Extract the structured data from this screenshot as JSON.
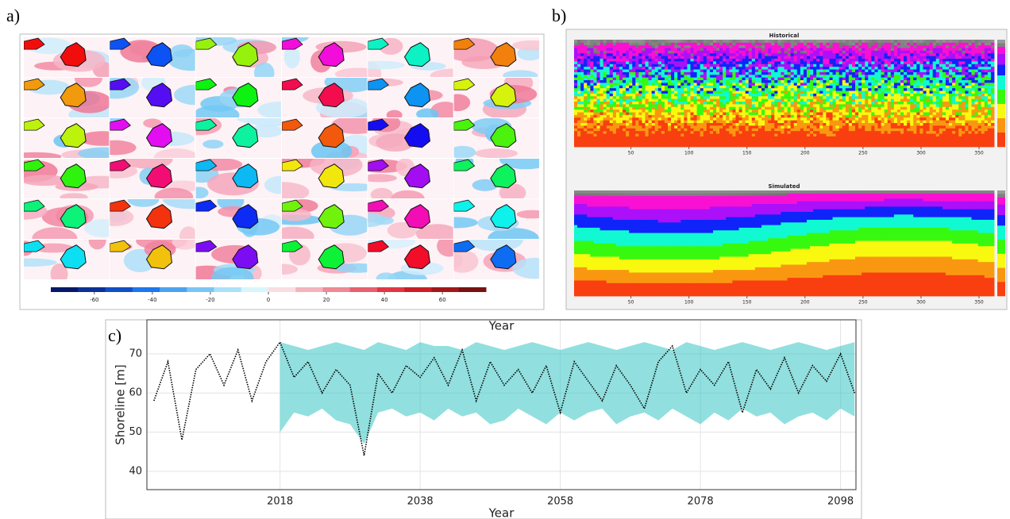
{
  "chart_data": [
    {
      "type": "mapgrid",
      "panel_label": "a)",
      "clim": [
        -75,
        75
      ],
      "cticks": [
        -60,
        -40,
        -20,
        0,
        20,
        40,
        60
      ]
    },
    {
      "type": "heatmap",
      "panel_label": "b)",
      "title": "Historical",
      "style": "rough",
      "xlim": [
        1,
        363
      ],
      "xticks": [
        50,
        100,
        150,
        200,
        250,
        300,
        350
      ]
    },
    {
      "type": "heatmap",
      "title": "Simulated",
      "style": "smooth",
      "xlim": [
        1,
        363
      ],
      "xticks": [
        50,
        100,
        150,
        200,
        250,
        300,
        350
      ]
    },
    {
      "type": "line",
      "panel_label": "c)",
      "title": "Year",
      "xlabel": "Year",
      "ylabel": "Shoreline [m]",
      "xlim": [
        1999,
        2100.2
      ],
      "ylim": [
        35.3,
        78.7
      ],
      "xticks": [
        2018,
        2038,
        2058,
        2078,
        2098
      ],
      "yticks": [
        40,
        50,
        60,
        70
      ],
      "grid": true,
      "series": [
        {
          "color": "#000000",
          "x": [
            2000,
            2002,
            2004,
            2006,
            2008,
            2010,
            2012,
            2014,
            2016,
            2018,
            2020,
            2022,
            2024,
            2026,
            2028,
            2030,
            2032,
            2034,
            2036,
            2038,
            2040,
            2042,
            2044,
            2046,
            2048,
            2050,
            2052,
            2054,
            2056,
            2058,
            2060,
            2062,
            2064,
            2066,
            2068,
            2070,
            2072,
            2074,
            2076,
            2078,
            2080,
            2082,
            2084,
            2086,
            2088,
            2090,
            2092,
            2094,
            2096,
            2098,
            2100
          ],
          "values": [
            58,
            68,
            48,
            66,
            70,
            62,
            71,
            58,
            68,
            73,
            64,
            68,
            60,
            66,
            62,
            44,
            65,
            60,
            67,
            64,
            69,
            62,
            71,
            58,
            68,
            62,
            66,
            60,
            67,
            55,
            68,
            63,
            58,
            67,
            62,
            56,
            68,
            72,
            60,
            66,
            62,
            68,
            55,
            66,
            61,
            69,
            60,
            67,
            63,
            70,
            60
          ]
        }
      ],
      "band": {
        "color": "#38c4c4",
        "x": [
          2018,
          2020,
          2022,
          2024,
          2026,
          2028,
          2030,
          2032,
          2034,
          2036,
          2038,
          2040,
          2042,
          2044,
          2046,
          2048,
          2050,
          2052,
          2054,
          2056,
          2058,
          2060,
          2062,
          2064,
          2066,
          2068,
          2070,
          2072,
          2074,
          2076,
          2078,
          2080,
          2082,
          2084,
          2086,
          2088,
          2090,
          2092,
          2094,
          2096,
          2098,
          2100
        ],
        "lower": [
          50,
          55,
          54,
          56,
          53,
          52,
          47,
          55,
          56,
          54,
          55,
          53,
          56,
          54,
          55,
          52,
          53,
          56,
          54,
          52,
          55,
          53,
          55,
          56,
          52,
          54,
          55,
          53,
          56,
          54,
          52,
          55,
          53,
          56,
          54,
          55,
          52,
          54,
          55,
          53,
          56,
          54
        ],
        "upper": [
          73,
          72,
          71,
          72,
          73,
          72,
          71,
          73,
          72,
          71,
          73,
          72,
          72,
          71,
          73,
          72,
          71,
          72,
          73,
          72,
          71,
          72,
          73,
          72,
          71,
          72,
          73,
          72,
          71,
          73,
          72,
          71,
          72,
          73,
          72,
          71,
          72,
          73,
          72,
          71,
          72,
          73
        ]
      }
    }
  ]
}
